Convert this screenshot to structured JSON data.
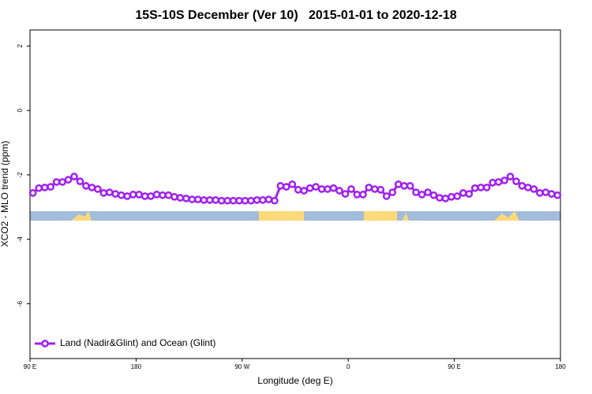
{
  "chart_data": {
    "type": "line",
    "title": "15S-10S December (Ver 10)   2015-01-01 to 2020-12-18",
    "xlabel": "Longitude (deg E)",
    "ylabel": "XCO2 - MLO trend (ppm)",
    "xlim": [
      90,
      540
    ],
    "ylim": [
      -7.7,
      2.5
    ],
    "xticks": [
      {
        "value": 90,
        "label": "90 E"
      },
      {
        "value": 180,
        "label": "180"
      },
      {
        "value": 270,
        "label": "90 W"
      },
      {
        "value": 360,
        "label": "0"
      },
      {
        "value": 450,
        "label": "90 E"
      },
      {
        "value": 540,
        "label": "180"
      }
    ],
    "yticks": [
      -6,
      -4,
      -2,
      0,
      2
    ],
    "legend": "bottom-left",
    "x": [
      92.5,
      97.5,
      102.5,
      107.5,
      112.5,
      117.5,
      122.5,
      127.5,
      132.5,
      137.5,
      142.5,
      147.5,
      152.5,
      157.5,
      162.5,
      167.5,
      172.5,
      177.5,
      182.5,
      187.5,
      192.5,
      197.5,
      202.5,
      207.5,
      212.5,
      217.5,
      222.5,
      227.5,
      232.5,
      237.5,
      242.5,
      247.5,
      252.5,
      257.5,
      262.5,
      267.5,
      272.5,
      277.5,
      282.5,
      287.5,
      292.5,
      297.5,
      302.5,
      307.5,
      312.5,
      317.5,
      322.5,
      327.5,
      332.5,
      337.5,
      342.5,
      347.5,
      352.5,
      357.5,
      362.5,
      367.5,
      372.5,
      377.5,
      382.5,
      387.5,
      392.5,
      397.5,
      402.5,
      407.5,
      412.5,
      417.5,
      422.5,
      427.5,
      432.5,
      437.5,
      442.5,
      447.5,
      452.5,
      457.5,
      462.5,
      467.5,
      472.5,
      477.5,
      482.5,
      487.5,
      492.5,
      497.5,
      502.5,
      507.5,
      512.5,
      517.5,
      522.5,
      527.5,
      532.5,
      537.5
    ],
    "series": [
      {
        "name": "Land (Nadir&Glint) and Ocean (Glint)",
        "color": "#a020f0",
        "values": [
          -2.56,
          -2.41,
          -2.39,
          -2.37,
          -2.22,
          -2.22,
          -2.15,
          -2.05,
          -2.2,
          -2.34,
          -2.39,
          -2.44,
          -2.56,
          -2.54,
          -2.59,
          -2.63,
          -2.66,
          -2.61,
          -2.61,
          -2.66,
          -2.66,
          -2.61,
          -2.63,
          -2.63,
          -2.68,
          -2.71,
          -2.73,
          -2.76,
          -2.76,
          -2.78,
          -2.78,
          -2.78,
          -2.8,
          -2.8,
          -2.8,
          -2.8,
          -2.8,
          -2.8,
          -2.78,
          -2.78,
          -2.76,
          -2.8,
          -2.34,
          -2.37,
          -2.29,
          -2.46,
          -2.49,
          -2.41,
          -2.37,
          -2.44,
          -2.44,
          -2.41,
          -2.49,
          -2.59,
          -2.44,
          -2.61,
          -2.61,
          -2.39,
          -2.44,
          -2.46,
          -2.66,
          -2.54,
          -2.29,
          -2.34,
          -2.34,
          -2.54,
          -2.61,
          -2.54,
          -2.63,
          -2.71,
          -2.73,
          -2.68,
          -2.66,
          -2.56,
          -2.59,
          -2.41,
          -2.39,
          -2.39,
          -2.24,
          -2.22,
          -2.17,
          -2.05,
          -2.2,
          -2.34,
          -2.39,
          -2.44,
          -2.56,
          -2.54,
          -2.59,
          -2.63
        ]
      }
    ]
  }
}
